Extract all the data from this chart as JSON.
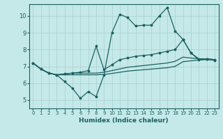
{
  "title": "",
  "xlabel": "Humidex (Indice chaleur)",
  "bg_color": "#c5e8e8",
  "grid_color": "#a8d0d0",
  "line_color": "#1a6060",
  "xlim": [
    -0.5,
    23.5
  ],
  "ylim": [
    4.5,
    10.7
  ],
  "xticks": [
    0,
    1,
    2,
    3,
    4,
    5,
    6,
    7,
    8,
    9,
    10,
    11,
    12,
    13,
    14,
    15,
    16,
    17,
    18,
    19,
    20,
    21,
    22,
    23
  ],
  "yticks": [
    5,
    6,
    7,
    8,
    9,
    10
  ],
  "line1_x": [
    0,
    1,
    2,
    3,
    4,
    5,
    6,
    7,
    8,
    9,
    10,
    11,
    12,
    13,
    14,
    15,
    16,
    17,
    18,
    19,
    20,
    21,
    22,
    23
  ],
  "line1_y": [
    7.2,
    6.85,
    6.6,
    6.5,
    6.1,
    5.7,
    5.1,
    5.5,
    5.2,
    6.5,
    9.0,
    10.1,
    9.9,
    9.4,
    9.45,
    9.45,
    10.0,
    10.5,
    9.1,
    8.6,
    7.8,
    7.4,
    7.45,
    7.35
  ],
  "line2_x": [
    0,
    1,
    2,
    3,
    4,
    5,
    6,
    7,
    8,
    9,
    10,
    11,
    12,
    13,
    14,
    15,
    16,
    17,
    18,
    19,
    20,
    21,
    22,
    23
  ],
  "line2_y": [
    7.2,
    6.85,
    6.6,
    6.5,
    6.55,
    6.6,
    6.65,
    6.75,
    8.2,
    6.8,
    7.1,
    7.4,
    7.5,
    7.6,
    7.65,
    7.7,
    7.8,
    7.9,
    8.0,
    8.6,
    7.8,
    7.45,
    7.45,
    7.4
  ],
  "line3_x": [
    0,
    1,
    2,
    3,
    4,
    5,
    6,
    7,
    8,
    9,
    10,
    11,
    12,
    13,
    14,
    15,
    16,
    17,
    18,
    19,
    20,
    21,
    22,
    23
  ],
  "line3_y": [
    7.2,
    6.85,
    6.6,
    6.5,
    6.55,
    6.6,
    6.6,
    6.6,
    6.6,
    6.65,
    6.75,
    6.85,
    6.95,
    7.0,
    7.05,
    7.1,
    7.15,
    7.2,
    7.3,
    7.55,
    7.5,
    7.45,
    7.45,
    7.4
  ],
  "line4_x": [
    0,
    1,
    2,
    3,
    4,
    5,
    6,
    7,
    8,
    9,
    10,
    11,
    12,
    13,
    14,
    15,
    16,
    17,
    18,
    19,
    20,
    21,
    22,
    23
  ],
  "line4_y": [
    7.2,
    6.85,
    6.6,
    6.5,
    6.5,
    6.5,
    6.5,
    6.5,
    6.5,
    6.52,
    6.58,
    6.65,
    6.72,
    6.76,
    6.8,
    6.84,
    6.88,
    6.92,
    7.0,
    7.28,
    7.33,
    7.38,
    7.4,
    7.38
  ],
  "marker_size": 2.5,
  "lw": 0.9
}
